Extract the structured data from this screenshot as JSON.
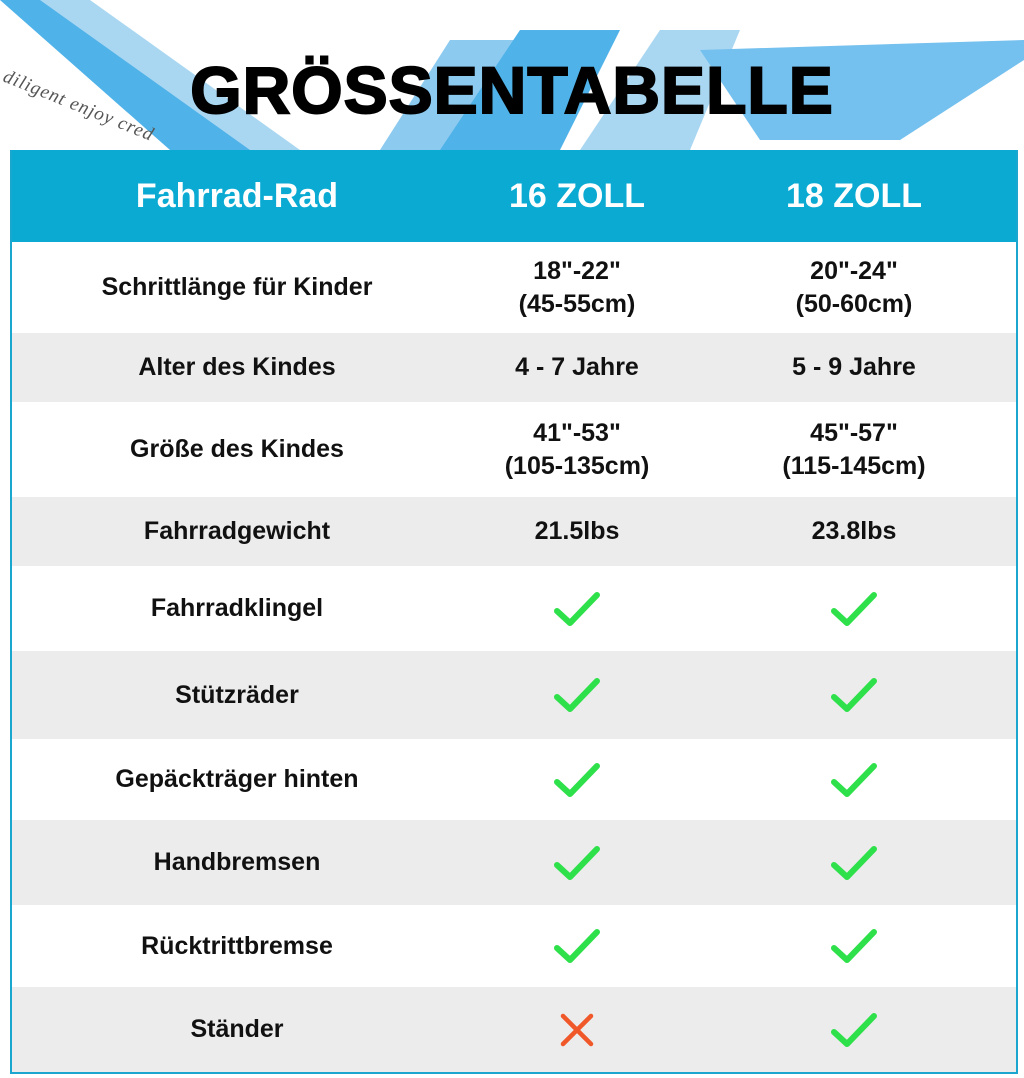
{
  "watermark": "diligent enjoy cred",
  "title": "GRÖSSENTABELLE",
  "table": {
    "header": [
      "Fahrrad-Rad",
      "16 ZOLL",
      "18 ZOLL"
    ],
    "rows": [
      {
        "label": "Schrittlänge für Kinder",
        "cells": [
          [
            "18\"-22\"",
            "(45-55cm)"
          ],
          [
            "20\"-24\"",
            "(50-60cm)"
          ]
        ]
      },
      {
        "label": "Alter des Kindes",
        "cells": [
          [
            "4 - 7 Jahre"
          ],
          [
            "5 - 9 Jahre"
          ]
        ]
      },
      {
        "label": "Größe des Kindes",
        "cells": [
          [
            "41\"-53\"",
            "(105-135cm)"
          ],
          [
            "45\"-57\"",
            "(115-145cm)"
          ]
        ]
      },
      {
        "label": "Fahrradgewicht",
        "cells": [
          [
            "21.5lbs"
          ],
          [
            "23.8lbs"
          ]
        ]
      },
      {
        "label": "Fahrradklingel",
        "cells": [
          true,
          true
        ]
      },
      {
        "label": "Stützräder",
        "cells": [
          true,
          true
        ]
      },
      {
        "label": "Gepäckträger hinten",
        "cells": [
          true,
          true
        ]
      },
      {
        "label": "Handbremsen",
        "cells": [
          true,
          true
        ]
      },
      {
        "label": "Rücktrittbremse",
        "cells": [
          true,
          true
        ]
      },
      {
        "label": "Ständer",
        "cells": [
          false,
          true
        ]
      }
    ]
  }
}
